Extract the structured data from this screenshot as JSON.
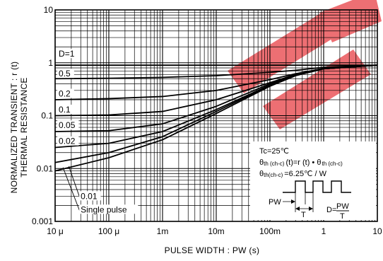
{
  "chart_data": {
    "type": "line",
    "xscale": "log",
    "yscale": "log",
    "xlim": [
      1e-05,
      10
    ],
    "ylim": [
      0.001,
      10
    ],
    "grid": true,
    "xlabel": "PULSE WIDTH : PW  (s)",
    "ylabel_line1": "NORMALIZED TRANSIENT : r (t)",
    "ylabel_line2": "THERMAL  RESISTANCE",
    "x_tick_labels": [
      "10 μ",
      "100 μ",
      "1m",
      "10m",
      "100m",
      "1",
      "10"
    ],
    "x_tick_values": [
      1e-05,
      0.0001,
      0.001,
      0.01,
      0.1,
      1,
      10
    ],
    "y_tick_labels": [
      "0.001",
      "0.01",
      "0.1",
      "1",
      "10"
    ],
    "y_tick_values": [
      0.001,
      0.01,
      0.1,
      1,
      10
    ],
    "series": [
      {
        "name": "D=1",
        "x": [
          1e-05,
          0.1,
          10
        ],
        "y": [
          0.9,
          0.9,
          0.9
        ]
      },
      {
        "name": "0.5",
        "x": [
          1e-05,
          0.0001,
          0.001,
          0.01,
          0.1,
          0.3,
          1,
          10
        ],
        "y": [
          0.5,
          0.51,
          0.53,
          0.57,
          0.66,
          0.72,
          0.82,
          0.9
        ]
      },
      {
        "name": "0.2",
        "x": [
          1e-05,
          0.0001,
          0.001,
          0.01,
          0.1,
          0.3,
          1,
          10
        ],
        "y": [
          0.2,
          0.21,
          0.23,
          0.3,
          0.48,
          0.62,
          0.78,
          0.9
        ]
      },
      {
        "name": "0.1",
        "x": [
          1e-05,
          0.0001,
          0.001,
          0.01,
          0.1,
          0.3,
          1,
          10
        ],
        "y": [
          0.1,
          0.103,
          0.12,
          0.2,
          0.42,
          0.6,
          0.77,
          0.9
        ]
      },
      {
        "name": "0.05",
        "x": [
          1e-05,
          0.0001,
          0.001,
          0.01,
          0.1,
          0.3,
          1,
          10
        ],
        "y": [
          0.05,
          0.052,
          0.07,
          0.15,
          0.4,
          0.6,
          0.77,
          0.9
        ]
      },
      {
        "name": "0.02",
        "x": [
          1e-05,
          0.0001,
          0.001,
          0.01,
          0.1,
          0.3,
          1,
          10
        ],
        "y": [
          0.025,
          0.03,
          0.05,
          0.13,
          0.38,
          0.58,
          0.77,
          0.9
        ]
      },
      {
        "name": "0.01",
        "x": [
          1e-05,
          0.0001,
          0.001,
          0.01,
          0.1,
          0.3,
          1,
          10
        ],
        "y": [
          0.013,
          0.02,
          0.04,
          0.12,
          0.37,
          0.58,
          0.77,
          0.9
        ]
      },
      {
        "name": "Single pulse",
        "x": [
          1e-05,
          0.0001,
          0.001,
          0.01,
          0.1,
          0.3,
          1,
          10
        ],
        "y": [
          0.009,
          0.016,
          0.035,
          0.11,
          0.36,
          0.57,
          0.77,
          0.9
        ]
      }
    ],
    "curve_labels": [
      {
        "text": "D=1",
        "x": 1.13e-05,
        "y": 1.3
      },
      {
        "text": "0.5",
        "x": 1.13e-05,
        "y": 0.55
      },
      {
        "text": "0.2",
        "x": 1.13e-05,
        "y": 0.23
      },
      {
        "text": "0.1",
        "x": 1.13e-05,
        "y": 0.115
      },
      {
        "text": "0.05",
        "x": 1.13e-05,
        "y": 0.058
      },
      {
        "text": "0.02",
        "x": 1.13e-05,
        "y": 0.029
      },
      {
        "text": "0.01",
        "x": 2.9e-05,
        "y": 0.00265
      },
      {
        "text": "Single pulse",
        "x": 2.9e-05,
        "y": 0.00148
      }
    ],
    "annotation": {
      "tc": "Tc=25℃",
      "eq_theta1": "θ",
      "eq_th1": "th (ch-c)",
      "eq_mid": "(t)=r (t) • θ",
      "eq_th2": "th  (ch-c)",
      "val_theta": "θ",
      "val_th": "th(ch-c)",
      "val_rest": "=6.25℃ / W",
      "pw": "PW",
      "t": "T",
      "d_left": "D=",
      "d_num": "PW",
      "d_den": "T"
    },
    "watermark_color": "#e8474c"
  }
}
